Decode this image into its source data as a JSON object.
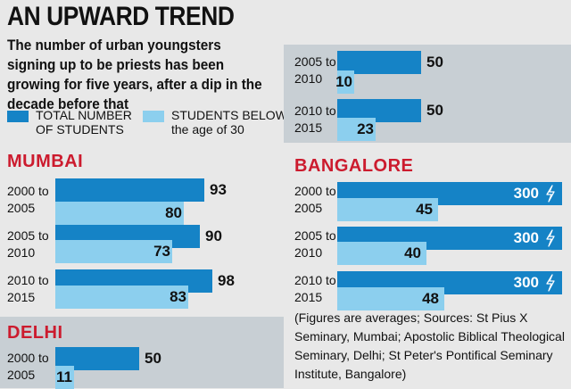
{
  "title": "AN UPWARD TREND",
  "subtitle": "The number of urban youngsters signing up to be priests has been growing for five years, after a dip in the decade before that",
  "colors": {
    "total": "#1583c6",
    "young": "#8ccfee",
    "city": "#cc1b2e",
    "panel": "#c8cfd4",
    "background": "#e8e8e8"
  },
  "legend": [
    {
      "line1": "TOTAL NUMBER",
      "line2": "OF STUDENTS",
      "color": "#1583c6"
    },
    {
      "line1": "STUDENTS BELOW",
      "line2": "the age of 30",
      "color": "#8ccfee"
    }
  ],
  "note": "(Figures are averages; Sources: St Pius X Seminary, Mumbai; Apostolic Biblical Theological Seminary, Delhi; St Peter's Pontifical Seminary Institute, Bangalore)",
  "chart_data": [
    {
      "type": "bar",
      "title": "MUMBAI",
      "categories": [
        [
          "2000 to",
          "2005"
        ],
        [
          "2005 to",
          "2010"
        ],
        [
          "2010 to",
          "2015"
        ]
      ],
      "series": [
        {
          "name": "TOTAL NUMBER OF STUDENTS",
          "values": [
            93,
            90,
            98
          ]
        },
        {
          "name": "STUDENTS BELOW the age of 30",
          "values": [
            80,
            73,
            83
          ]
        }
      ]
    },
    {
      "type": "bar",
      "title": "DELHI",
      "categories": [
        [
          "2000 to",
          "2005"
        ],
        [
          "2005 to",
          "2010"
        ],
        [
          "2010 to",
          "2015"
        ]
      ],
      "series": [
        {
          "name": "TOTAL NUMBER OF STUDENTS",
          "values": [
            50,
            50,
            50
          ]
        },
        {
          "name": "STUDENTS BELOW the age of 30",
          "values": [
            11,
            10,
            23
          ]
        }
      ]
    },
    {
      "type": "bar",
      "title": "BANGALORE",
      "categories": [
        [
          "2000 to",
          "2005"
        ],
        [
          "2005 to",
          "2010"
        ],
        [
          "2010 to",
          "2015"
        ]
      ],
      "series": [
        {
          "name": "TOTAL NUMBER OF STUDENTS",
          "values": [
            300,
            300,
            300
          ]
        },
        {
          "name": "STUDENTS BELOW the age of 30",
          "values": [
            45,
            40,
            48
          ]
        }
      ]
    }
  ]
}
